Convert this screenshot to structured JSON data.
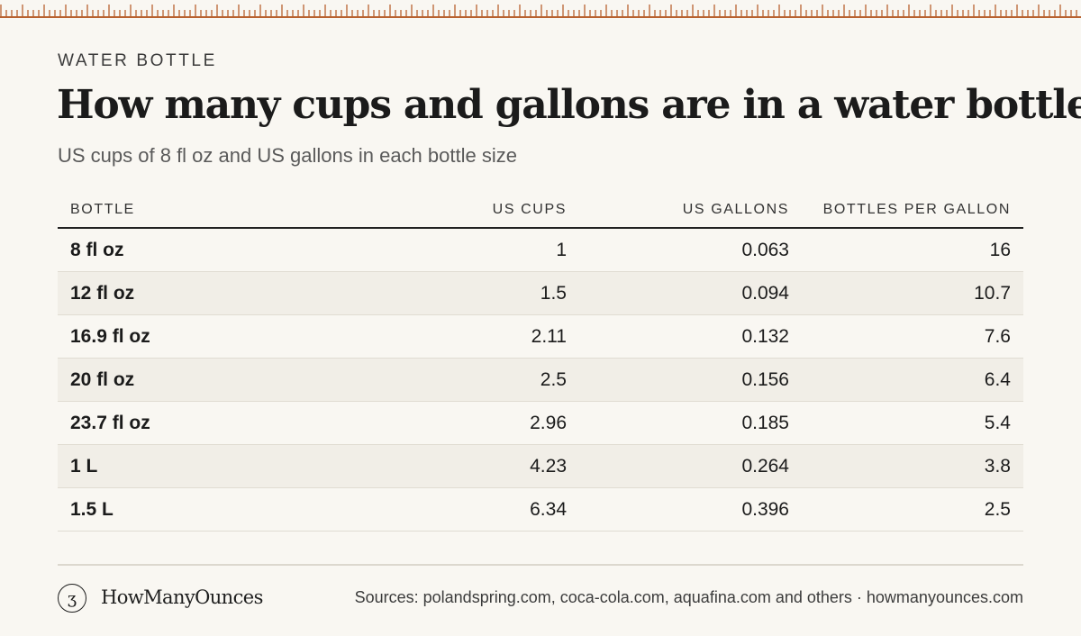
{
  "eyebrow": "WATER BOTTLE",
  "title": "How many cups and gallons are in a water bottle?",
  "subtitle": "US cups of 8 fl oz and US gallons in each bottle size",
  "table": {
    "headers": [
      "BOTTLE",
      "US CUPS",
      "US GALLONS",
      "BOTTLES PER GALLON"
    ],
    "rows": [
      [
        "8 fl oz",
        "1",
        "0.063",
        "16"
      ],
      [
        "12 fl oz",
        "1.5",
        "0.094",
        "10.7"
      ],
      [
        "16.9 fl oz",
        "2.11",
        "0.132",
        "7.6"
      ],
      [
        "20 fl oz",
        "2.5",
        "0.156",
        "6.4"
      ],
      [
        "23.7 fl oz",
        "2.96",
        "0.185",
        "5.4"
      ],
      [
        "1 L",
        "4.23",
        "0.264",
        "3.8"
      ],
      [
        "1.5 L",
        "6.34",
        "0.396",
        "2.5"
      ]
    ]
  },
  "chart_data": {
    "type": "table",
    "title": "How many cups and gallons are in a water bottle?",
    "subtitle": "US cups of 8 fl oz and US gallons in each bottle size",
    "columns": [
      "BOTTLE",
      "US CUPS",
      "US GALLONS",
      "BOTTLES PER GALLON"
    ],
    "categories": [
      "8 fl oz",
      "12 fl oz",
      "16.9 fl oz",
      "20 fl oz",
      "23.7 fl oz",
      "1 L",
      "1.5 L"
    ],
    "series": [
      {
        "name": "US CUPS",
        "values": [
          1,
          1.5,
          2.11,
          2.5,
          2.96,
          4.23,
          6.34
        ]
      },
      {
        "name": "US GALLONS",
        "values": [
          0.063,
          0.094,
          0.132,
          0.156,
          0.185,
          0.264,
          0.396
        ]
      },
      {
        "name": "BOTTLES PER GALLON",
        "values": [
          16,
          10.7,
          7.6,
          6.4,
          5.4,
          3.8,
          2.5
        ]
      }
    ]
  },
  "footer": {
    "logo_icon": "ounce-logo-icon",
    "logo_glyph": "ʒ",
    "brand": "HowManyOunces",
    "sources": "Sources: polandspring.com, coca-cola.com, aquafina.com and others · howmanyounces.com"
  },
  "colors": {
    "background": "#f9f7f2",
    "ruler": "#b8612f",
    "row_alt": "#f1eee7",
    "text": "#1e1e1e"
  }
}
